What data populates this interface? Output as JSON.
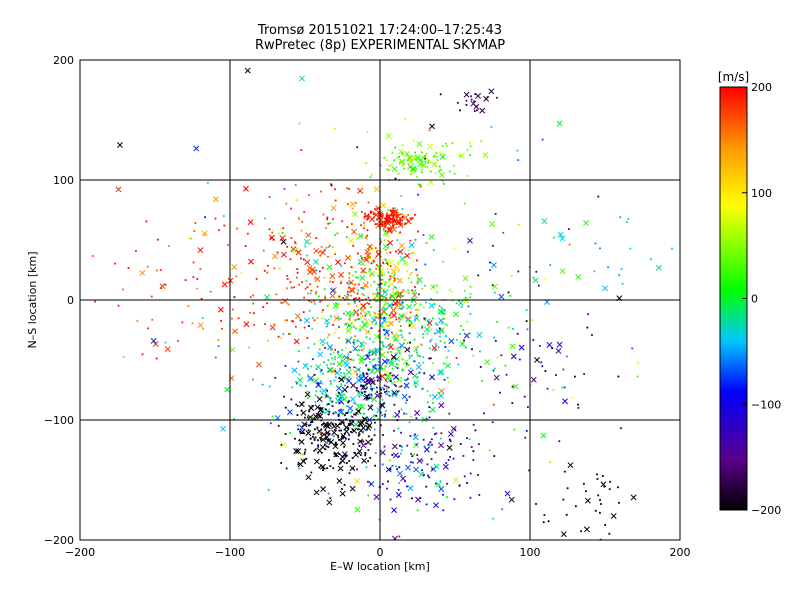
{
  "chart_data": {
    "type": "scatter",
    "title": "Tromsø 20151021 17:24:00–17:25:43",
    "subtitle": "RwPretec (8p) EXPERIMENTAL SKYMAP",
    "xlabel": "E–W location [km]",
    "ylabel": "N–S location [km]",
    "xlim": [
      -200,
      200
    ],
    "ylim": [
      -200,
      200
    ],
    "x_ticks": [
      -200,
      -100,
      0,
      100,
      200
    ],
    "y_ticks": [
      -200,
      -100,
      0,
      100,
      200
    ],
    "grid": true,
    "markers": [
      "dot",
      "x"
    ],
    "colorbar": {
      "label": "[m/s]",
      "range": [
        -200,
        200
      ],
      "ticks": [
        -200,
        -100,
        0,
        100,
        200
      ],
      "colormap": [
        "#000000",
        "#5a008c",
        "#0000ff",
        "#00c8ff",
        "#00ff00",
        "#ffff00",
        "#ff9600",
        "#ff0000"
      ]
    },
    "clusters": [
      {
        "name": "red-patch-north",
        "x": 5,
        "y": 67,
        "sx": 7,
        "sy": 4,
        "n": 120,
        "v": 190,
        "vs": 15
      },
      {
        "name": "red-yellow-center",
        "x": 0,
        "y": 10,
        "sx": 15,
        "sy": 35,
        "n": 260,
        "v": 120,
        "vs": 60
      },
      {
        "name": "red-west",
        "x": -40,
        "y": 25,
        "sx": 30,
        "sy": 35,
        "n": 220,
        "v": 180,
        "vs": 25
      },
      {
        "name": "green-cyan-core",
        "x": 10,
        "y": -20,
        "sx": 28,
        "sy": 30,
        "n": 420,
        "v": 0,
        "vs": 40
      },
      {
        "name": "cyan-south",
        "x": -15,
        "y": -70,
        "sx": 25,
        "sy": 20,
        "n": 260,
        "v": -40,
        "vs": 30
      },
      {
        "name": "blue-purple",
        "x": -5,
        "y": -70,
        "sx": 8,
        "sy": 8,
        "n": 60,
        "v": -150,
        "vs": 20
      },
      {
        "name": "black-south",
        "x": -30,
        "y": -115,
        "sx": 16,
        "sy": 20,
        "n": 260,
        "v": -200,
        "vs": 8
      },
      {
        "name": "green-northeast",
        "x": 30,
        "y": 115,
        "sx": 15,
        "sy": 9,
        "n": 110,
        "v": 40,
        "vs": 20
      },
      {
        "name": "purple-north",
        "x": 65,
        "y": 165,
        "sx": 6,
        "sy": 6,
        "n": 20,
        "v": -180,
        "vs": 15
      },
      {
        "name": "south-east-mixed",
        "x": 25,
        "y": -130,
        "sx": 25,
        "sy": 30,
        "n": 160,
        "v": -110,
        "vs": 60
      },
      {
        "name": "east-scatter",
        "x": 90,
        "y": -40,
        "sx": 35,
        "sy": 60,
        "n": 90,
        "v": -120,
        "vs": 80
      },
      {
        "name": "west-red-ring",
        "x": -130,
        "y": 20,
        "sx": 30,
        "sy": 40,
        "n": 60,
        "v": 180,
        "vs": 20
      },
      {
        "name": "black-far-southeast",
        "x": 140,
        "y": -170,
        "sx": 20,
        "sy": 15,
        "n": 35,
        "v": -200,
        "vs": 10
      },
      {
        "name": "cyan-far-east",
        "x": 150,
        "y": 50,
        "sx": 25,
        "sy": 20,
        "n": 18,
        "v": -20,
        "vs": 30
      },
      {
        "name": "broad-background",
        "x": 0,
        "y": 0,
        "sx": 90,
        "sy": 90,
        "n": 180,
        "v": 0,
        "vs": 120
      }
    ]
  }
}
